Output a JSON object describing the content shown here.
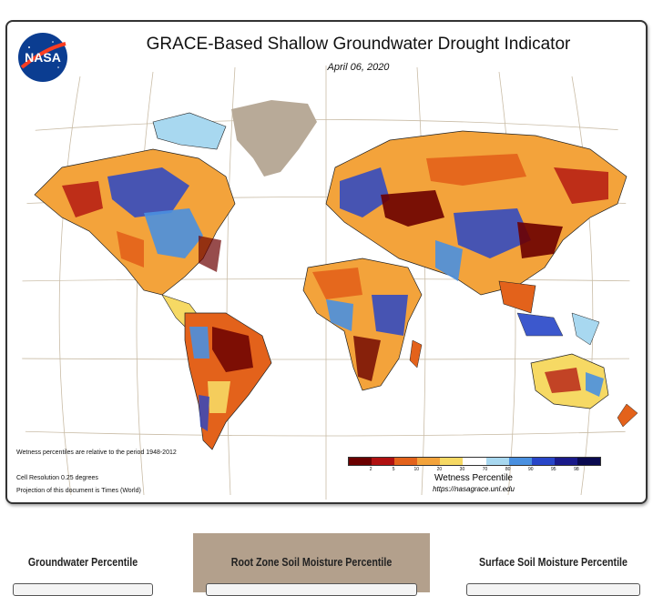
{
  "map": {
    "title": "GRACE-Based Shallow Groundwater Drought Indicator",
    "date": "April 06, 2020",
    "logo_text": "NASA",
    "footnotes": {
      "period": "Wetness percentiles are relative to the period 1948-2012",
      "resolution": "Cell Resolution 0.25 degrees",
      "projection": "Projection of this document is Times (World)"
    },
    "legend": {
      "title": "Wetness Percentile",
      "url": "https://nasagrace.unl.edu",
      "ticks": [
        "2",
        "5",
        "10",
        "20",
        "30",
        "70",
        "80",
        "90",
        "95",
        "98"
      ],
      "colors": [
        "#6b0000",
        "#b01010",
        "#e3621b",
        "#f3a33b",
        "#f6d964",
        "#ffffff",
        "#a8d8f0",
        "#4a90e0",
        "#2846c8",
        "#1a1a8a",
        "#0a0a50"
      ]
    },
    "colors": {
      "land_neutral": "#f6ead8",
      "ocean": "#ffffff",
      "greenland": "#b8aa98",
      "graticule": "#c9bca6"
    }
  },
  "tabs": [
    {
      "label": "Groundwater Percentile",
      "active": false
    },
    {
      "label": "Root Zone Soil Moisture Percentile",
      "active": true
    },
    {
      "label": "Surface Soil Moisture Percentile",
      "active": false
    }
  ]
}
